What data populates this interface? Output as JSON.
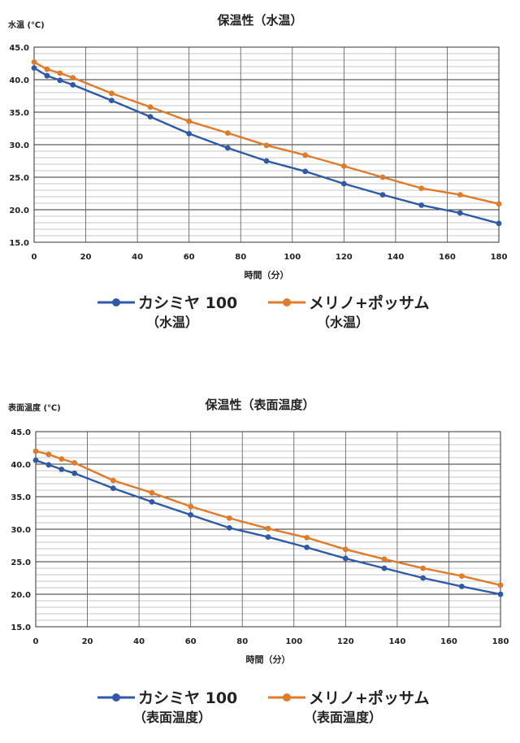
{
  "chart_data": [
    {
      "type": "line",
      "title": "保温性（水温）",
      "ylabel": "水温 (℃)",
      "xlabel": "時間（分）",
      "x": [
        0,
        5,
        10,
        15,
        30,
        45,
        60,
        75,
        90,
        105,
        120,
        135,
        150,
        165,
        180
      ],
      "xlim": [
        0,
        180
      ],
      "xticks": [
        0,
        20,
        40,
        60,
        80,
        100,
        120,
        140,
        160,
        180
      ],
      "ylim": [
        15,
        45
      ],
      "yticks": [
        "15.0",
        "20.0",
        "25.0",
        "30.0",
        "35.0",
        "40.0",
        "45.0"
      ],
      "series": [
        {
          "name": "カシミヤ 100",
          "sub": "（水温）",
          "color": "#2e5aa8",
          "values": [
            41.8,
            40.6,
            39.9,
            39.2,
            36.8,
            34.3,
            31.7,
            29.5,
            27.5,
            25.9,
            24.0,
            22.3,
            20.7,
            19.5,
            17.9
          ]
        },
        {
          "name": "メリノ+ポッサム",
          "sub": "（水温）",
          "color": "#e07b2a",
          "values": [
            42.7,
            41.6,
            41.0,
            40.3,
            37.9,
            35.8,
            33.6,
            31.8,
            29.9,
            28.4,
            26.7,
            25.0,
            23.3,
            22.3,
            20.9
          ]
        }
      ],
      "grid": true,
      "legend": "bottom"
    },
    {
      "type": "line",
      "title": "保温性（表面温度）",
      "ylabel": "表面温度 (℃)",
      "xlabel": "時間（分）",
      "x": [
        0,
        5,
        10,
        15,
        30,
        45,
        60,
        75,
        90,
        105,
        120,
        135,
        150,
        165,
        180
      ],
      "xlim": [
        0,
        180
      ],
      "xticks": [
        0,
        20,
        40,
        60,
        80,
        100,
        120,
        140,
        160,
        180
      ],
      "ylim": [
        15,
        45
      ],
      "yticks": [
        "15.0",
        "20.0",
        "25.0",
        "30.0",
        "35.0",
        "40.0",
        "45.0"
      ],
      "series": [
        {
          "name": "カシミヤ 100",
          "sub": "（表面温度）",
          "color": "#2e5aa8",
          "values": [
            40.6,
            39.9,
            39.2,
            38.6,
            36.3,
            34.2,
            32.2,
            30.2,
            28.8,
            27.2,
            25.5,
            24.0,
            22.5,
            21.2,
            20.0
          ]
        },
        {
          "name": "メリノ+ポッサム",
          "sub": "（表面温度）",
          "color": "#e07b2a",
          "values": [
            42.0,
            41.5,
            40.8,
            40.2,
            37.5,
            35.6,
            33.5,
            31.7,
            30.1,
            28.7,
            26.9,
            25.4,
            24.0,
            22.8,
            21.4
          ]
        }
      ],
      "grid": true,
      "legend": "bottom"
    }
  ]
}
